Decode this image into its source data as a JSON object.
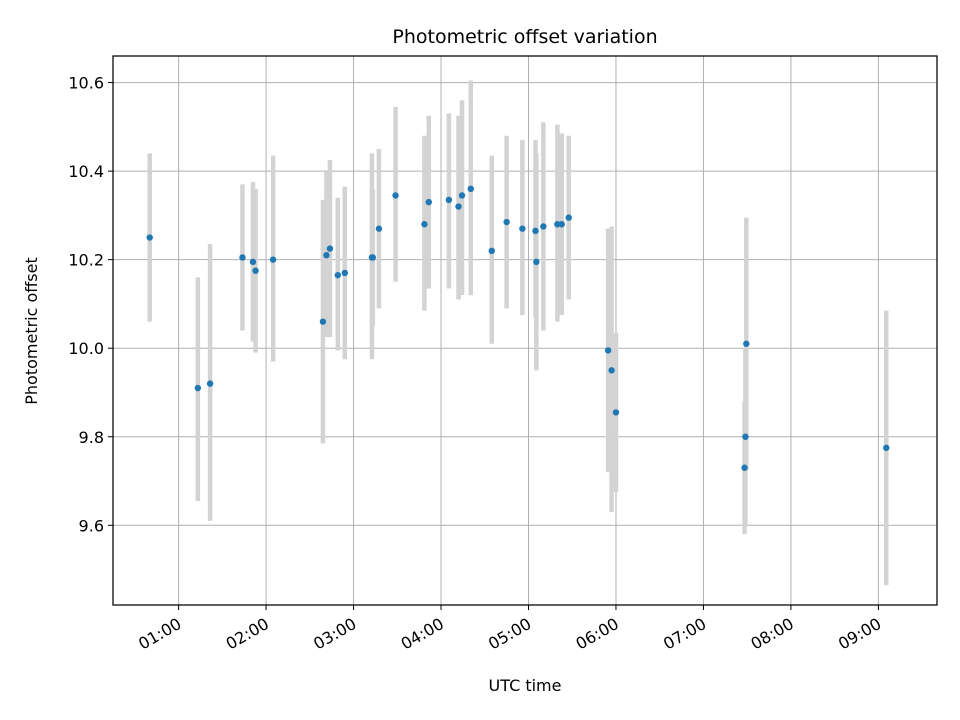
{
  "chart_data": {
    "type": "scatter",
    "title": "Photometric offset variation",
    "xlabel": "UTC time",
    "ylabel": "Photometric offset",
    "x_unit": "hours UTC",
    "xlim": [
      0.25,
      9.67
    ],
    "ylim": [
      9.42,
      10.66
    ],
    "x_ticks": [
      {
        "value": 1,
        "label": "01:00"
      },
      {
        "value": 2,
        "label": "02:00"
      },
      {
        "value": 3,
        "label": "03:00"
      },
      {
        "value": 4,
        "label": "04:00"
      },
      {
        "value": 5,
        "label": "05:00"
      },
      {
        "value": 6,
        "label": "06:00"
      },
      {
        "value": 7,
        "label": "07:00"
      },
      {
        "value": 8,
        "label": "08:00"
      },
      {
        "value": 9,
        "label": "09:00"
      }
    ],
    "y_ticks": [
      {
        "value": 9.6,
        "label": "9.6"
      },
      {
        "value": 9.8,
        "label": "9.8"
      },
      {
        "value": 10.0,
        "label": "10.0"
      },
      {
        "value": 10.2,
        "label": "10.2"
      },
      {
        "value": 10.4,
        "label": "10.4"
      },
      {
        "value": 10.6,
        "label": "10.6"
      }
    ],
    "grid": true,
    "colors": {
      "point": "#1f77b4",
      "errorbar": "#d3d3d3",
      "grid": "#b0b0b0"
    },
    "points": [
      {
        "x": 0.67,
        "y": 10.25,
        "lo": 10.06,
        "hi": 10.44
      },
      {
        "x": 1.22,
        "y": 9.91,
        "lo": 9.655,
        "hi": 10.16
      },
      {
        "x": 1.36,
        "y": 9.92,
        "lo": 9.61,
        "hi": 10.235
      },
      {
        "x": 1.73,
        "y": 10.205,
        "lo": 10.04,
        "hi": 10.37
      },
      {
        "x": 1.85,
        "y": 10.195,
        "lo": 10.015,
        "hi": 10.375
      },
      {
        "x": 1.88,
        "y": 10.175,
        "lo": 9.99,
        "hi": 10.36
      },
      {
        "x": 2.08,
        "y": 10.2,
        "lo": 9.97,
        "hi": 10.435
      },
      {
        "x": 2.65,
        "y": 10.06,
        "lo": 9.785,
        "hi": 10.335
      },
      {
        "x": 2.69,
        "y": 10.21,
        "lo": 10.025,
        "hi": 10.4
      },
      {
        "x": 2.73,
        "y": 10.225,
        "lo": 10.025,
        "hi": 10.425
      },
      {
        "x": 2.82,
        "y": 10.165,
        "lo": 9.995,
        "hi": 10.34
      },
      {
        "x": 2.9,
        "y": 10.17,
        "lo": 9.975,
        "hi": 10.365
      },
      {
        "x": 3.21,
        "y": 10.205,
        "lo": 9.975,
        "hi": 10.44
      },
      {
        "x": 3.22,
        "y": 10.205,
        "lo": 10.05,
        "hi": 10.36
      },
      {
        "x": 3.29,
        "y": 10.27,
        "lo": 10.09,
        "hi": 10.45
      },
      {
        "x": 3.48,
        "y": 10.345,
        "lo": 10.15,
        "hi": 10.545
      },
      {
        "x": 3.81,
        "y": 10.28,
        "lo": 10.085,
        "hi": 10.48
      },
      {
        "x": 3.86,
        "y": 10.33,
        "lo": 10.135,
        "hi": 10.525
      },
      {
        "x": 4.09,
        "y": 10.335,
        "lo": 10.135,
        "hi": 10.53
      },
      {
        "x": 4.2,
        "y": 10.32,
        "lo": 10.11,
        "hi": 10.525
      },
      {
        "x": 4.24,
        "y": 10.345,
        "lo": 10.12,
        "hi": 10.56
      },
      {
        "x": 4.34,
        "y": 10.36,
        "lo": 10.12,
        "hi": 10.605
      },
      {
        "x": 4.58,
        "y": 10.22,
        "lo": 10.01,
        "hi": 10.435
      },
      {
        "x": 4.75,
        "y": 10.285,
        "lo": 10.09,
        "hi": 10.48
      },
      {
        "x": 4.93,
        "y": 10.27,
        "lo": 10.075,
        "hi": 10.47
      },
      {
        "x": 5.08,
        "y": 10.265,
        "lo": 10.07,
        "hi": 10.47
      },
      {
        "x": 5.09,
        "y": 10.195,
        "lo": 9.95,
        "hi": 10.44
      },
      {
        "x": 5.17,
        "y": 10.275,
        "lo": 10.04,
        "hi": 10.51
      },
      {
        "x": 5.33,
        "y": 10.28,
        "lo": 10.06,
        "hi": 10.505
      },
      {
        "x": 5.38,
        "y": 10.28,
        "lo": 10.075,
        "hi": 10.485
      },
      {
        "x": 5.46,
        "y": 10.295,
        "lo": 10.11,
        "hi": 10.48
      },
      {
        "x": 5.91,
        "y": 9.995,
        "lo": 9.72,
        "hi": 10.27
      },
      {
        "x": 5.95,
        "y": 9.95,
        "lo": 9.63,
        "hi": 10.275
      },
      {
        "x": 6.0,
        "y": 9.855,
        "lo": 9.675,
        "hi": 10.035
      },
      {
        "x": 7.47,
        "y": 9.73,
        "lo": 9.58,
        "hi": 9.88
      },
      {
        "x": 7.48,
        "y": 9.8,
        "lo": 9.6,
        "hi": 10.0
      },
      {
        "x": 7.49,
        "y": 10.01,
        "lo": 9.725,
        "hi": 10.295
      },
      {
        "x": 9.09,
        "y": 9.775,
        "lo": 9.465,
        "hi": 10.085
      }
    ]
  }
}
